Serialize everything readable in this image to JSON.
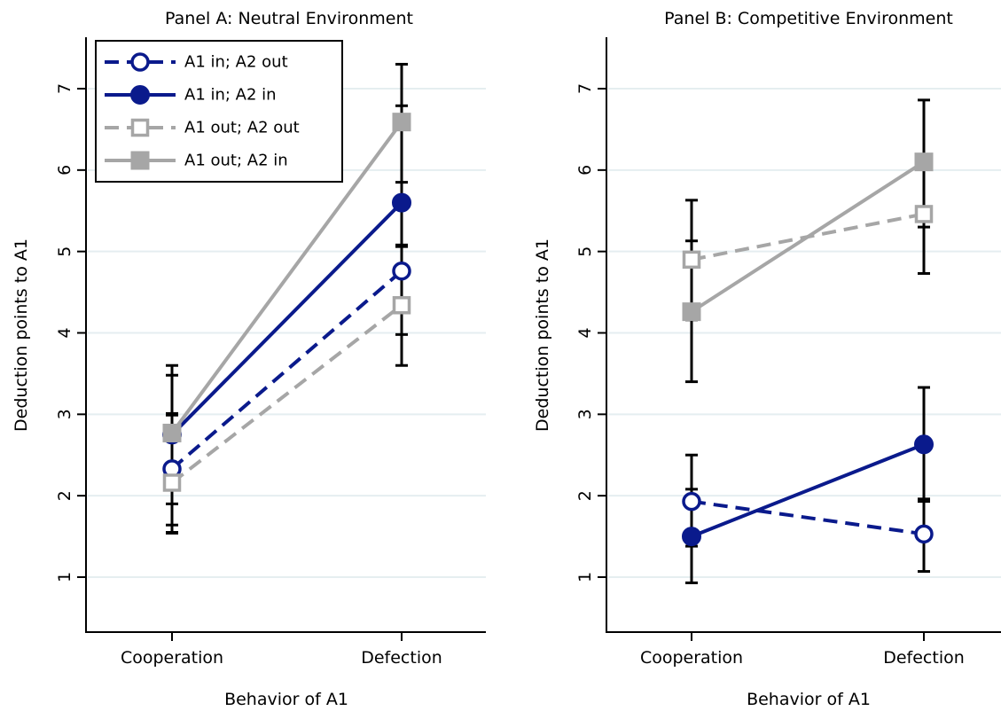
{
  "chart_data": [
    {
      "type": "line",
      "title": "Panel A: Neutral Environment",
      "xlabel": "Behavior of A1",
      "ylabel": "Deduction points to A1",
      "categories": [
        "Cooperation",
        "Defection"
      ],
      "ylim": [
        0,
        7.5
      ],
      "yticks": [
        1,
        2,
        3,
        4,
        5,
        6,
        7
      ],
      "grid": true,
      "legend_position": "top-left",
      "series": [
        {
          "name": "A1 in; A2 out",
          "values": [
            2.33,
            4.76
          ],
          "lower": [
            1.64,
            3.98
          ],
          "upper": [
            3.01,
            5.06
          ],
          "color": "#0a1a8c",
          "dashed": true,
          "marker": "circle-open"
        },
        {
          "name": "A1 in; A2 in",
          "values": [
            2.75,
            5.6
          ],
          "lower": [
            1.9,
            5.07
          ],
          "upper": [
            3.48,
            6.79
          ],
          "color": "#0a1a8c",
          "dashed": false,
          "marker": "circle-filled"
        },
        {
          "name": "A1 out; A2 out",
          "values": [
            2.16,
            4.34
          ],
          "lower": [
            1.54,
            3.6
          ],
          "upper": [
            2.99,
            5.08
          ],
          "color": "#a6a6a6",
          "dashed": true,
          "marker": "square-open"
        },
        {
          "name": "A1 out; A2 in",
          "values": [
            2.77,
            6.59
          ],
          "lower": [
            1.55,
            5.85
          ],
          "upper": [
            3.6,
            7.3
          ],
          "color": "#a6a6a6",
          "dashed": false,
          "marker": "square-filled"
        }
      ]
    },
    {
      "type": "line",
      "title": "Panel B: Competitive Environment",
      "xlabel": "Behavior of A1",
      "ylabel": "Deduction points to A1",
      "categories": [
        "Cooperation",
        "Defection"
      ],
      "ylim": [
        0,
        7.5
      ],
      "yticks": [
        1,
        2,
        3,
        4,
        5,
        6,
        7
      ],
      "grid": true,
      "series": [
        {
          "name": "A1 in; A2 out",
          "values": [
            1.93,
            1.53
          ],
          "lower": [
            1.38,
            1.07
          ],
          "upper": [
            2.5,
            1.96
          ],
          "color": "#0a1a8c",
          "dashed": true,
          "marker": "circle-open"
        },
        {
          "name": "A1 in; A2 in",
          "values": [
            1.5,
            2.63
          ],
          "lower": [
            0.93,
            1.93
          ],
          "upper": [
            2.08,
            3.33
          ],
          "color": "#0a1a8c",
          "dashed": false,
          "marker": "circle-filled"
        },
        {
          "name": "A1 out; A2 out",
          "values": [
            4.9,
            5.46
          ],
          "lower": [
            4.16,
            4.73
          ],
          "upper": [
            5.63,
            6.19
          ],
          "color": "#a6a6a6",
          "dashed": true,
          "marker": "square-open"
        },
        {
          "name": "A1 out; A2 in",
          "values": [
            4.26,
            6.1
          ],
          "lower": [
            3.4,
            5.3
          ],
          "upper": [
            5.13,
            6.86
          ],
          "color": "#a6a6a6",
          "dashed": false,
          "marker": "square-filled"
        }
      ]
    }
  ]
}
